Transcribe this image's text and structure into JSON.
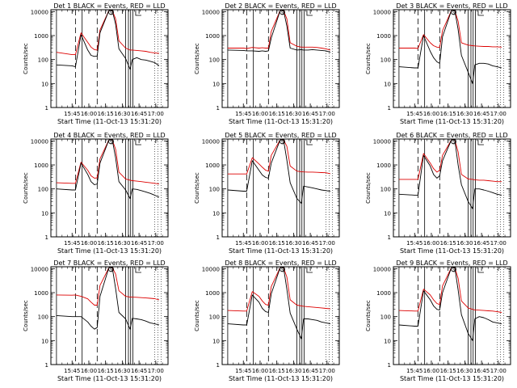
{
  "common": {
    "ylabel": "Counts/sec",
    "xlabel": "Start Time (11-Oct-13 15:31:20)",
    "x_ticks": [
      "15:45",
      "16:00",
      "16:15",
      "16:30",
      "16:45",
      "17:00"
    ],
    "y_ticks": [
      "1",
      "10",
      "100",
      "1000",
      "10000"
    ],
    "legend_series": [
      "Events",
      "LLD"
    ],
    "legend_colors": {
      "Events": "BLACK",
      "LLD": "RED"
    },
    "colors": {
      "events": "#000000",
      "lld": "#dd0000"
    },
    "y_scale": "log",
    "ylim": [
      1,
      12000
    ],
    "xlim_minutes_after_start": [
      -5,
      100
    ],
    "top_markers": [
      "S",
      "E"
    ]
  },
  "chart_data": [
    {
      "type": "line",
      "title": "Det  1  BLACK = Events, RED = LLD",
      "series": [
        {
          "name": "Events",
          "x": [
            0,
            14,
            17,
            22,
            28,
            31,
            34,
            36.5,
            39,
            47,
            50,
            53,
            56,
            62,
            66,
            68,
            72,
            76,
            80,
            84,
            88,
            92
          ],
          "values": [
            60,
            55,
            50,
            1100,
            250,
            150,
            135,
            140,
            1300,
            11000,
            11000,
            3000,
            280,
            110,
            40,
            100,
            120,
            100,
            95,
            85,
            75,
            55
          ]
        },
        {
          "name": "LLD",
          "x": [
            0,
            14,
            17,
            22,
            28,
            31,
            34,
            36.5,
            39,
            47,
            50,
            53,
            56,
            62,
            66,
            68,
            72,
            76,
            80,
            84,
            88,
            92
          ],
          "values": [
            200,
            160,
            160,
            1300,
            520,
            330,
            260,
            250,
            1700,
            11000,
            11000,
            5000,
            600,
            300,
            250,
            250,
            240,
            230,
            220,
            200,
            190,
            180
          ]
        }
      ]
    },
    {
      "type": "line",
      "title": "Det  2  BLACK = Events, RED = LLD",
      "series": [
        {
          "name": "Events",
          "x": [
            0,
            14,
            17,
            22,
            28,
            31,
            34,
            36.5,
            39,
            47,
            50,
            53,
            56,
            62,
            66,
            68,
            72,
            76,
            80,
            84,
            88,
            92
          ],
          "values": [
            250,
            240,
            230,
            230,
            220,
            230,
            220,
            230,
            800,
            11000,
            11000,
            2500,
            300,
            250,
            260,
            250,
            250,
            260,
            250,
            240,
            230,
            200
          ]
        },
        {
          "name": "LLD",
          "x": [
            0,
            14,
            17,
            22,
            28,
            31,
            34,
            36.5,
            39,
            47,
            50,
            53,
            56,
            62,
            66,
            68,
            72,
            76,
            80,
            84,
            88,
            92
          ],
          "values": [
            300,
            300,
            290,
            320,
            300,
            310,
            300,
            300,
            1500,
            11000,
            11000,
            5000,
            500,
            360,
            330,
            330,
            330,
            330,
            320,
            300,
            280,
            250
          ]
        }
      ]
    },
    {
      "type": "line",
      "title": "Det  3  BLACK = Events, RED = LLD",
      "series": [
        {
          "name": "Events",
          "x": [
            0,
            14,
            17,
            22,
            28,
            31,
            34,
            36.5,
            39,
            47,
            50,
            53,
            56,
            62,
            66,
            68,
            72,
            76,
            80,
            84,
            88,
            92
          ],
          "values": [
            50,
            45,
            45,
            1000,
            220,
            120,
            80,
            70,
            900,
            11000,
            11000,
            1800,
            150,
            30,
            10,
            60,
            70,
            70,
            65,
            55,
            50,
            45
          ]
        },
        {
          "name": "LLD",
          "x": [
            0,
            14,
            17,
            22,
            28,
            31,
            34,
            36.5,
            39,
            47,
            50,
            53,
            56,
            62,
            66,
            68,
            72,
            76,
            80,
            84,
            88,
            92
          ],
          "values": [
            300,
            300,
            290,
            1100,
            500,
            380,
            330,
            320,
            1600,
            11000,
            11000,
            4000,
            500,
            400,
            380,
            370,
            360,
            350,
            350,
            340,
            340,
            330
          ]
        }
      ]
    },
    {
      "type": "line",
      "title": "Det  4  BLACK = Events, RED = LLD",
      "series": [
        {
          "name": "Events",
          "x": [
            0,
            14,
            17,
            22,
            28,
            31,
            34,
            36.5,
            39,
            47,
            50,
            53,
            56,
            62,
            66,
            68,
            72,
            76,
            80,
            84,
            88,
            92
          ],
          "values": [
            100,
            90,
            90,
            1200,
            400,
            200,
            150,
            160,
            1200,
            11000,
            11000,
            2000,
            200,
            90,
            40,
            100,
            95,
            85,
            75,
            65,
            55,
            45
          ]
        },
        {
          "name": "LLD",
          "x": [
            0,
            14,
            17,
            22,
            28,
            31,
            34,
            36.5,
            39,
            47,
            50,
            53,
            56,
            62,
            66,
            68,
            72,
            76,
            80,
            84,
            88,
            92
          ],
          "values": [
            180,
            170,
            170,
            1300,
            600,
            350,
            280,
            290,
            1800,
            11000,
            11000,
            4500,
            500,
            260,
            230,
            220,
            210,
            200,
            190,
            180,
            170,
            160
          ]
        }
      ]
    },
    {
      "type": "line",
      "title": "Det  5  BLACK = Events, RED = LLD",
      "series": [
        {
          "name": "Events",
          "x": [
            0,
            14,
            17,
            22,
            28,
            31,
            34,
            36.5,
            39,
            47,
            50,
            53,
            56,
            62,
            66,
            68,
            72,
            76,
            80,
            84,
            88,
            92
          ],
          "values": [
            90,
            80,
            80,
            1500,
            600,
            380,
            300,
            280,
            1200,
            11000,
            11000,
            1600,
            180,
            40,
            25,
            130,
            120,
            110,
            100,
            90,
            85,
            80
          ]
        },
        {
          "name": "LLD",
          "x": [
            0,
            14,
            17,
            22,
            28,
            31,
            34,
            36.5,
            39,
            47,
            50,
            53,
            56,
            62,
            66,
            68,
            72,
            76,
            80,
            84,
            88,
            92
          ],
          "values": [
            420,
            420,
            420,
            2000,
            1100,
            800,
            600,
            550,
            2500,
            11000,
            11000,
            6000,
            900,
            550,
            520,
            510,
            500,
            500,
            490,
            480,
            470,
            430
          ]
        }
      ]
    },
    {
      "type": "line",
      "title": "Det  6  BLACK = Events, RED = LLD",
      "series": [
        {
          "name": "Events",
          "x": [
            0,
            14,
            17,
            22,
            28,
            31,
            34,
            36.5,
            39,
            47,
            50,
            53,
            56,
            62,
            66,
            68,
            72,
            76,
            80,
            84,
            88,
            92
          ],
          "values": [
            60,
            55,
            55,
            2500,
            900,
            400,
            280,
            350,
            1500,
            11000,
            11000,
            1000,
            150,
            30,
            15,
            100,
            100,
            90,
            80,
            70,
            60,
            55
          ]
        },
        {
          "name": "LLD",
          "x": [
            0,
            14,
            17,
            22,
            28,
            31,
            34,
            36.5,
            39,
            47,
            50,
            53,
            56,
            62,
            66,
            68,
            72,
            76,
            80,
            84,
            88,
            92
          ],
          "values": [
            250,
            250,
            250,
            3000,
            1200,
            700,
            500,
            600,
            2500,
            11000,
            11000,
            3500,
            400,
            260,
            250,
            240,
            230,
            230,
            220,
            210,
            200,
            200
          ]
        }
      ]
    },
    {
      "type": "line",
      "title": "Det  7  BLACK = Events, RED = LLD",
      "series": [
        {
          "name": "Events",
          "x": [
            0,
            14,
            17,
            22,
            28,
            31,
            34,
            36.5,
            39,
            47,
            50,
            53,
            56,
            62,
            66,
            68,
            72,
            76,
            80,
            84,
            88,
            92
          ],
          "values": [
            110,
            100,
            100,
            100,
            60,
            40,
            30,
            35,
            700,
            11000,
            11000,
            1500,
            150,
            80,
            30,
            85,
            80,
            75,
            65,
            55,
            50,
            45
          ]
        },
        {
          "name": "LLD",
          "x": [
            0,
            14,
            17,
            22,
            28,
            31,
            34,
            36.5,
            39,
            47,
            50,
            53,
            56,
            62,
            66,
            68,
            72,
            76,
            80,
            84,
            88,
            92
          ],
          "values": [
            800,
            780,
            800,
            700,
            550,
            400,
            300,
            300,
            2000,
            11000,
            11000,
            6000,
            1200,
            700,
            650,
            650,
            640,
            620,
            600,
            580,
            560,
            500
          ]
        }
      ]
    },
    {
      "type": "line",
      "title": "Det  8  BLACK = Events, RED = LLD",
      "series": [
        {
          "name": "Events",
          "x": [
            0,
            14,
            17,
            22,
            28,
            31,
            34,
            36.5,
            39,
            47,
            50,
            53,
            56,
            62,
            66,
            68,
            72,
            76,
            80,
            84,
            88,
            92
          ],
          "values": [
            50,
            45,
            45,
            800,
            400,
            220,
            160,
            150,
            900,
            11000,
            11000,
            1400,
            140,
            30,
            12,
            80,
            80,
            75,
            70,
            60,
            55,
            50
          ]
        },
        {
          "name": "LLD",
          "x": [
            0,
            14,
            17,
            22,
            28,
            31,
            34,
            36.5,
            39,
            47,
            50,
            53,
            56,
            62,
            66,
            68,
            72,
            76,
            80,
            84,
            88,
            92
          ],
          "values": [
            180,
            170,
            170,
            1100,
            700,
            450,
            320,
            300,
            1800,
            11000,
            11000,
            4500,
            500,
            300,
            280,
            270,
            260,
            250,
            240,
            230,
            220,
            210
          ]
        }
      ]
    },
    {
      "type": "line",
      "title": "Det  9  BLACK = Events, RED = LLD",
      "series": [
        {
          "name": "Events",
          "x": [
            0,
            14,
            17,
            22,
            28,
            31,
            34,
            36.5,
            39,
            47,
            50,
            53,
            56,
            62,
            66,
            68,
            72,
            76,
            80,
            84,
            88,
            92
          ],
          "values": [
            45,
            40,
            40,
            1200,
            500,
            280,
            200,
            190,
            1000,
            11000,
            11000,
            1300,
            120,
            20,
            10,
            80,
            100,
            90,
            75,
            60,
            55,
            50
          ]
        },
        {
          "name": "LLD",
          "x": [
            0,
            14,
            17,
            22,
            28,
            31,
            34,
            36.5,
            39,
            47,
            50,
            53,
            56,
            62,
            66,
            68,
            72,
            76,
            80,
            84,
            88,
            92
          ],
          "values": [
            180,
            170,
            170,
            1400,
            800,
            500,
            350,
            320,
            1900,
            11000,
            11000,
            4000,
            450,
            230,
            200,
            190,
            185,
            180,
            175,
            170,
            160,
            150
          ]
        }
      ]
    }
  ]
}
